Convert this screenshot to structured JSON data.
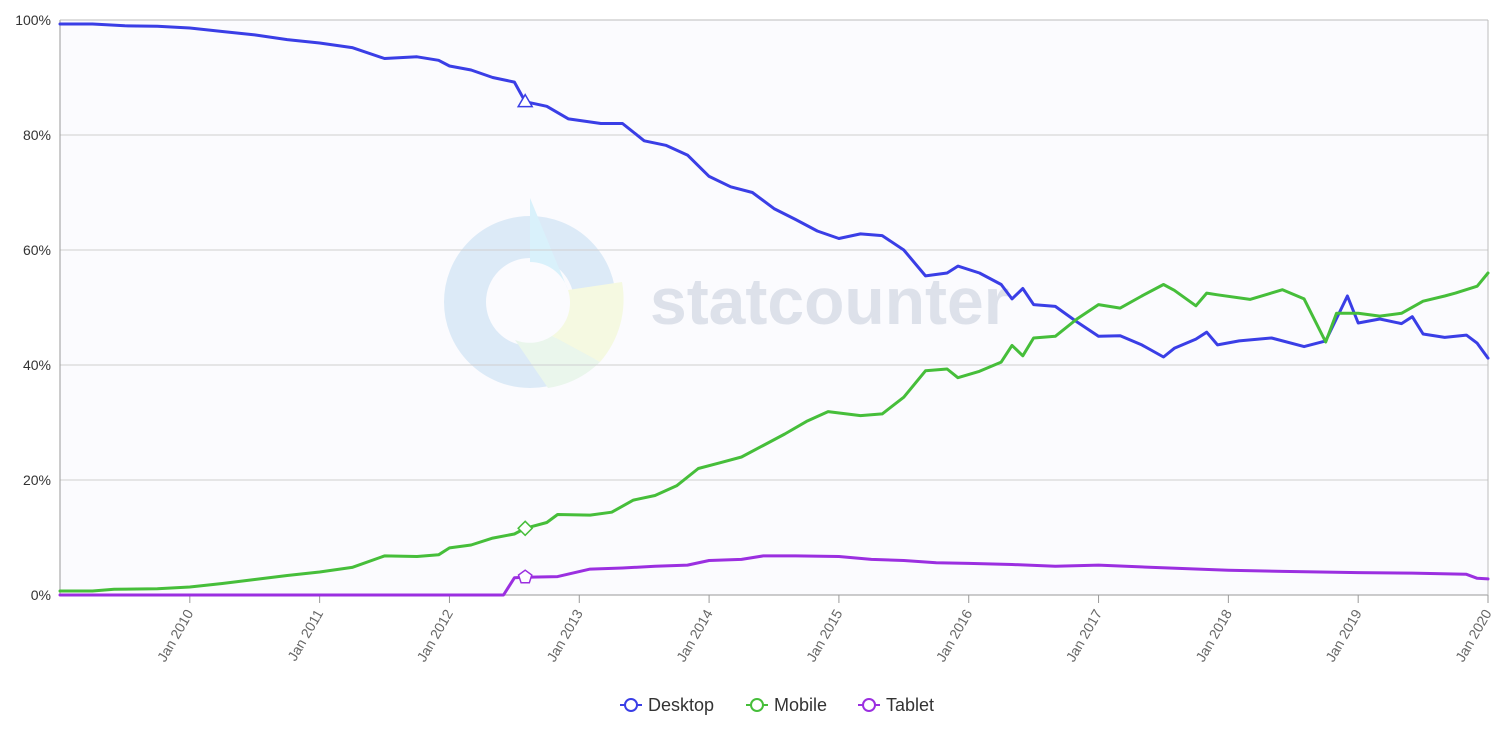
{
  "chart_data": {
    "type": "line",
    "watermark": "statcounter",
    "ylim": [
      0,
      100
    ],
    "y_ticks": [
      "0%",
      "20%",
      "40%",
      "60%",
      "80%",
      "100%"
    ],
    "y_tick_values": [
      0,
      20,
      40,
      60,
      80,
      100
    ],
    "x_tick_labels": [
      "Jan 2010",
      "Jan 2011",
      "Jan 2012",
      "Jan 2013",
      "Jan 2014",
      "Jan 2015",
      "Jan 2016",
      "Jan 2017",
      "Jan 2018",
      "Jan 2019",
      "Jan 2020"
    ],
    "x_tick_values": [
      "2010-01",
      "2011-01",
      "2012-01",
      "2013-01",
      "2014-01",
      "2015-01",
      "2016-01",
      "2017-01",
      "2018-01",
      "2019-01",
      "2020-01"
    ],
    "x_range": [
      "2009-01",
      "2020-01"
    ],
    "grid": true,
    "legend_position": "bottom-center",
    "legend": [
      "Desktop",
      "Mobile",
      "Tablet"
    ],
    "series": [
      {
        "name": "Desktop",
        "color": "#3a3ee6",
        "marker": "triangle",
        "points": [
          [
            "2009-01",
            99.3
          ],
          [
            "2009-04",
            99.3
          ],
          [
            "2009-07",
            99.0
          ],
          [
            "2009-10",
            98.9
          ],
          [
            "2010-01",
            98.6
          ],
          [
            "2010-04",
            98.0
          ],
          [
            "2010-07",
            97.4
          ],
          [
            "2010-10",
            96.6
          ],
          [
            "2011-01",
            96.0
          ],
          [
            "2011-04",
            95.2
          ],
          [
            "2011-07",
            93.3
          ],
          [
            "2011-10",
            93.6
          ],
          [
            "2011-12",
            93.0
          ],
          [
            "2012-01",
            92.0
          ],
          [
            "2012-03",
            91.3
          ],
          [
            "2012-05",
            90.0
          ],
          [
            "2012-07",
            89.2
          ],
          [
            "2012-08",
            85.8
          ],
          [
            "2012-10",
            85.0
          ],
          [
            "2012-12",
            82.8
          ],
          [
            "2013-03",
            82.0
          ],
          [
            "2013-05",
            82.0
          ],
          [
            "2013-07",
            79.0
          ],
          [
            "2013-09",
            78.2
          ],
          [
            "2013-11",
            76.5
          ],
          [
            "2014-01",
            72.8
          ],
          [
            "2014-03",
            71.0
          ],
          [
            "2014-05",
            70.0
          ],
          [
            "2014-07",
            67.2
          ],
          [
            "2014-09",
            65.3
          ],
          [
            "2014-11",
            63.3
          ],
          [
            "2015-01",
            62.0
          ],
          [
            "2015-03",
            62.8
          ],
          [
            "2015-05",
            62.5
          ],
          [
            "2015-07",
            60.0
          ],
          [
            "2015-09",
            55.5
          ],
          [
            "2015-11",
            56.0
          ],
          [
            "2015-12",
            57.2
          ],
          [
            "2016-02",
            56.0
          ],
          [
            "2016-04",
            54.0
          ],
          [
            "2016-05",
            51.5
          ],
          [
            "2016-06",
            53.3
          ],
          [
            "2016-07",
            50.5
          ],
          [
            "2016-09",
            50.2
          ],
          [
            "2016-11",
            47.5
          ],
          [
            "2017-01",
            45.0
          ],
          [
            "2017-03",
            45.1
          ],
          [
            "2017-05",
            43.5
          ],
          [
            "2017-07",
            41.4
          ],
          [
            "2017-08",
            42.9
          ],
          [
            "2017-10",
            44.5
          ],
          [
            "2017-11",
            45.7
          ],
          [
            "2017-12",
            43.5
          ],
          [
            "2018-02",
            44.2
          ],
          [
            "2018-05",
            44.7
          ],
          [
            "2018-08",
            43.2
          ],
          [
            "2018-10",
            44.2
          ],
          [
            "2018-12",
            52.0
          ],
          [
            "2019-01",
            47.3
          ],
          [
            "2019-03",
            48.0
          ],
          [
            "2019-05",
            47.2
          ],
          [
            "2019-06",
            48.4
          ],
          [
            "2019-07",
            45.4
          ],
          [
            "2019-09",
            44.8
          ],
          [
            "2019-11",
            45.2
          ],
          [
            "2019-12",
            43.8
          ],
          [
            "2020-01",
            41.2
          ]
        ]
      },
      {
        "name": "Mobile",
        "color": "#46be3a",
        "marker": "diamond",
        "points": [
          [
            "2009-01",
            0.7
          ],
          [
            "2009-04",
            0.7
          ],
          [
            "2009-06",
            1.0
          ],
          [
            "2009-10",
            1.1
          ],
          [
            "2010-01",
            1.4
          ],
          [
            "2010-04",
            2.0
          ],
          [
            "2010-07",
            2.7
          ],
          [
            "2010-10",
            3.4
          ],
          [
            "2011-01",
            4.0
          ],
          [
            "2011-04",
            4.8
          ],
          [
            "2011-07",
            6.8
          ],
          [
            "2011-10",
            6.7
          ],
          [
            "2011-12",
            7.0
          ],
          [
            "2012-01",
            8.2
          ],
          [
            "2012-03",
            8.7
          ],
          [
            "2012-05",
            9.9
          ],
          [
            "2012-07",
            10.6
          ],
          [
            "2012-08",
            11.6
          ],
          [
            "2012-10",
            12.6
          ],
          [
            "2012-11",
            14.0
          ],
          [
            "2013-02",
            13.9
          ],
          [
            "2013-04",
            14.4
          ],
          [
            "2013-06",
            16.5
          ],
          [
            "2013-08",
            17.3
          ],
          [
            "2013-10",
            19.0
          ],
          [
            "2013-12",
            22.0
          ],
          [
            "2014-02",
            23.0
          ],
          [
            "2014-04",
            24.0
          ],
          [
            "2014-06",
            26.0
          ],
          [
            "2014-08",
            28.0
          ],
          [
            "2014-10",
            30.2
          ],
          [
            "2014-12",
            31.9
          ],
          [
            "2015-03",
            31.2
          ],
          [
            "2015-05",
            31.5
          ],
          [
            "2015-07",
            34.4
          ],
          [
            "2015-09",
            39.0
          ],
          [
            "2015-11",
            39.3
          ],
          [
            "2015-12",
            37.8
          ],
          [
            "2016-02",
            38.9
          ],
          [
            "2016-04",
            40.5
          ],
          [
            "2016-05",
            43.4
          ],
          [
            "2016-06",
            41.6
          ],
          [
            "2016-07",
            44.7
          ],
          [
            "2016-09",
            45.0
          ],
          [
            "2016-11",
            48.0
          ],
          [
            "2017-01",
            50.5
          ],
          [
            "2017-03",
            49.9
          ],
          [
            "2017-05",
            52.0
          ],
          [
            "2017-07",
            54.0
          ],
          [
            "2017-08",
            53.0
          ],
          [
            "2017-10",
            50.3
          ],
          [
            "2017-11",
            52.5
          ],
          [
            "2017-12",
            52.2
          ],
          [
            "2018-03",
            51.4
          ],
          [
            "2018-06",
            53.1
          ],
          [
            "2018-08",
            51.5
          ],
          [
            "2018-10",
            44.0
          ],
          [
            "2018-11",
            49.0
          ],
          [
            "2019-01",
            49.0
          ],
          [
            "2019-03",
            48.5
          ],
          [
            "2019-05",
            49.0
          ],
          [
            "2019-07",
            51.1
          ],
          [
            "2019-09",
            52.0
          ],
          [
            "2019-10",
            52.5
          ],
          [
            "2019-12",
            53.7
          ],
          [
            "2020-01",
            56.0
          ]
        ]
      },
      {
        "name": "Tablet",
        "color": "#9b2fe0",
        "marker": "pentagon",
        "points": [
          [
            "2009-01",
            0.0
          ],
          [
            "2012-06",
            0.0
          ],
          [
            "2012-07",
            3.0
          ],
          [
            "2012-08",
            3.1
          ],
          [
            "2012-11",
            3.2
          ],
          [
            "2013-02",
            4.5
          ],
          [
            "2013-05",
            4.7
          ],
          [
            "2013-08",
            5.0
          ],
          [
            "2013-11",
            5.2
          ],
          [
            "2014-01",
            6.0
          ],
          [
            "2014-04",
            6.2
          ],
          [
            "2014-06",
            6.8
          ],
          [
            "2014-09",
            6.8
          ],
          [
            "2015-01",
            6.7
          ],
          [
            "2015-04",
            6.2
          ],
          [
            "2015-07",
            6.0
          ],
          [
            "2015-10",
            5.6
          ],
          [
            "2016-01",
            5.5
          ],
          [
            "2016-05",
            5.3
          ],
          [
            "2016-09",
            5.0
          ],
          [
            "2017-01",
            5.2
          ],
          [
            "2017-06",
            4.8
          ],
          [
            "2018-01",
            4.3
          ],
          [
            "2018-06",
            4.1
          ],
          [
            "2019-01",
            3.9
          ],
          [
            "2019-06",
            3.8
          ],
          [
            "2019-11",
            3.6
          ],
          [
            "2019-12",
            2.9
          ],
          [
            "2020-01",
            2.8
          ]
        ]
      }
    ]
  }
}
